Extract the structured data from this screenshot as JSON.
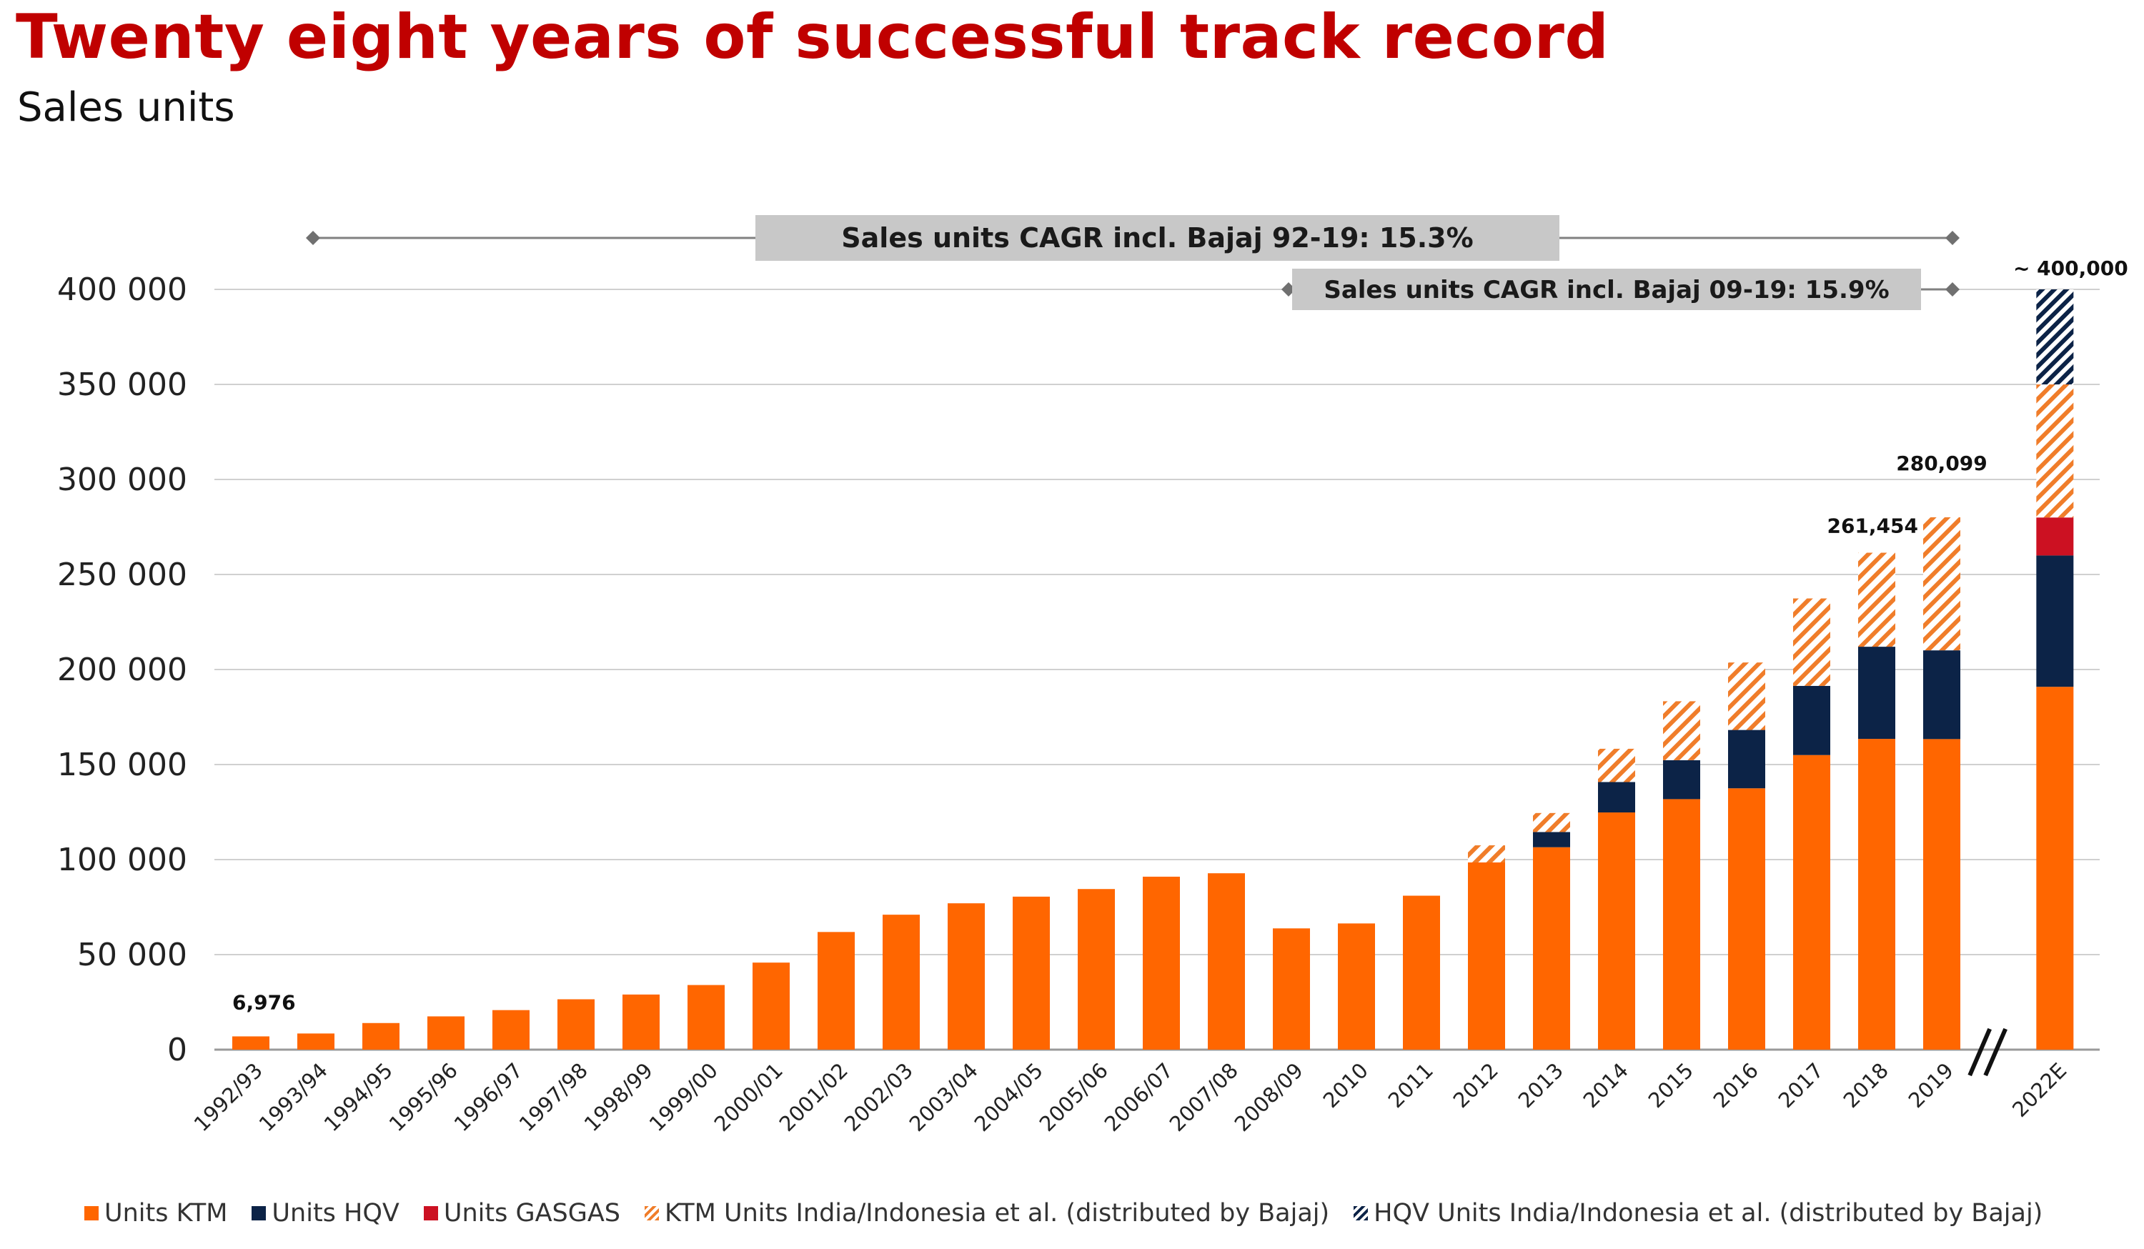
{
  "header": {
    "title": "Twenty eight years of successful track record",
    "subtitle": "Sales units"
  },
  "colors": {
    "title": "#c00000",
    "ktm": "#ff6600",
    "hqv": "#0c2347",
    "gasgas": "#cc1122",
    "bajaj_ktm_hatch": "#f07d2a",
    "bajaj_hqv_hatch": "#0c2347",
    "grid": "#d0d0d0",
    "cagr_box": "#c8c8c8"
  },
  "chart_data": {
    "type": "bar",
    "stacked": true,
    "ylim": [
      0,
      400000
    ],
    "yticks": [
      0,
      50000,
      100000,
      150000,
      200000,
      250000,
      300000,
      350000,
      400000
    ],
    "ytick_labels": [
      "0",
      "50 000",
      "100 000",
      "150 000",
      "200 000",
      "250 000",
      "300 000",
      "350 000",
      "400 000"
    ],
    "categories": [
      "1992/93",
      "1993/94",
      "1994/95",
      "1995/96",
      "1996/97",
      "1997/98",
      "1998/99",
      "1999/00",
      "2000/01",
      "2001/02",
      "2002/03",
      "2003/04",
      "2004/05",
      "2005/06",
      "2006/07",
      "2007/08",
      "2008/09",
      "2010",
      "2011",
      "2012",
      "2013",
      "2014",
      "2015",
      "2016",
      "2017",
      "2018",
      "2019",
      "2022E"
    ],
    "series": [
      {
        "name": "Units KTM",
        "key": "ktm",
        "values": [
          6976,
          8500,
          14000,
          17500,
          20800,
          26500,
          29000,
          34000,
          45800,
          61900,
          71000,
          77000,
          80500,
          84500,
          91000,
          92800,
          63800,
          66400,
          81000,
          98500,
          106500,
          124800,
          131800,
          137500,
          155000,
          163500,
          163400,
          190900
        ]
      },
      {
        "name": "Units HQV",
        "key": "hqv",
        "values": [
          0,
          0,
          0,
          0,
          0,
          0,
          0,
          0,
          0,
          0,
          0,
          0,
          0,
          0,
          0,
          0,
          0,
          0,
          0,
          0,
          8000,
          16000,
          20500,
          30700,
          36400,
          48500,
          46700,
          69100
        ]
      },
      {
        "name": "Units GASGAS",
        "key": "gasgas",
        "values": [
          0,
          0,
          0,
          0,
          0,
          0,
          0,
          0,
          0,
          0,
          0,
          0,
          0,
          0,
          0,
          0,
          0,
          0,
          0,
          0,
          0,
          0,
          0,
          0,
          0,
          0,
          0,
          20000
        ]
      },
      {
        "name": "KTM Units India/Indonesia et al. (distributed by Bajaj)",
        "key": "bajaj_ktm",
        "values": [
          0,
          0,
          0,
          0,
          0,
          0,
          0,
          0,
          0,
          0,
          0,
          0,
          0,
          0,
          0,
          0,
          0,
          0,
          0,
          9000,
          10000,
          17500,
          31000,
          35500,
          46000,
          49454,
          69999,
          70000
        ]
      },
      {
        "name": "HQV Units India/Indonesia et al. (distributed by Bajaj)",
        "key": "bajaj_hqv",
        "values": [
          0,
          0,
          0,
          0,
          0,
          0,
          0,
          0,
          0,
          0,
          0,
          0,
          0,
          0,
          0,
          0,
          0,
          0,
          0,
          0,
          0,
          0,
          0,
          0,
          0,
          0,
          0,
          50000
        ]
      }
    ],
    "data_labels": [
      {
        "category": "1992/93",
        "text": "6,976"
      },
      {
        "category": "2018",
        "text": "261,454"
      },
      {
        "category": "2019",
        "text": "280,099"
      },
      {
        "category": "2022E",
        "text": "~ 400,000"
      }
    ],
    "annotations": [
      {
        "id": "cagr1",
        "text": "Sales units CAGR incl. Bajaj 92-19:  15.3%",
        "from": "1993/94",
        "to": "2019"
      },
      {
        "id": "cagr2",
        "text": "Sales units CAGR incl. Bajaj 09-19:  15.9%",
        "from": "2008/09",
        "to": "2019"
      }
    ],
    "break_before": "2022E",
    "legend_position": "bottom"
  }
}
